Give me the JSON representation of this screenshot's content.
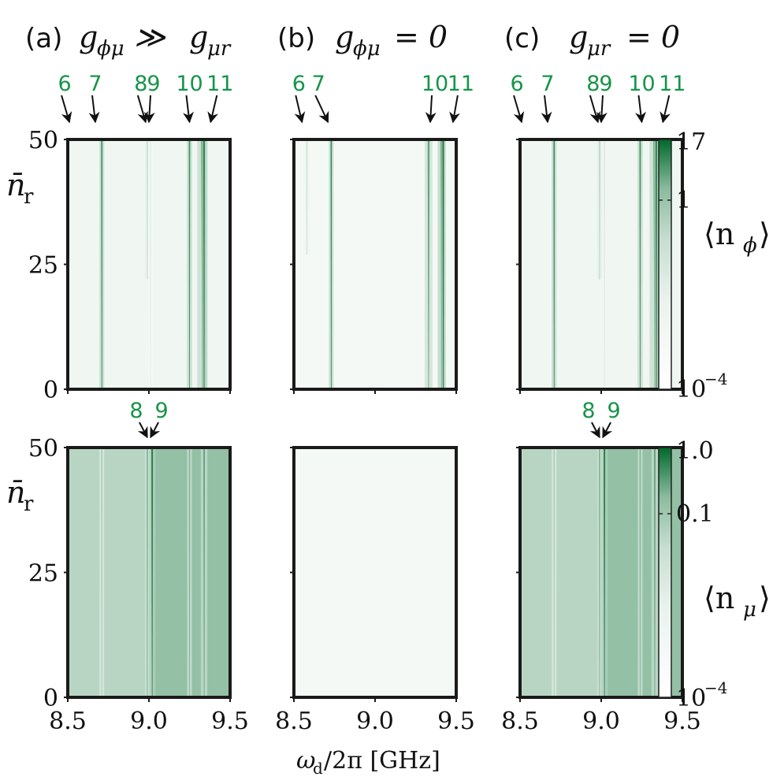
{
  "panels": [
    {
      "id": "a",
      "label": "(a)",
      "title_math": "g_{ϕμ} ≫ g_{μr}",
      "title_parts": {
        "g1": "g",
        "s1": "ϕμ",
        "rel": "≫",
        "g2": "g",
        "s2": "μr"
      }
    },
    {
      "id": "b",
      "label": "(b)",
      "title_math": "g_{ϕμ} = 0",
      "title_parts": {
        "g1": "g",
        "s1": "ϕμ",
        "rel": "= 0"
      }
    },
    {
      "id": "c",
      "label": "(c)",
      "title_math": "g_{μr} = 0",
      "title_parts": {
        "g1": "g",
        "s1": "μr",
        "rel": "= 0"
      }
    }
  ],
  "colorbars": {
    "top": {
      "label_main": "⟨n",
      "label_sub": "ϕ",
      "label_close": "⟩",
      "ticks": [
        "17",
        "1",
        "10",
        "−4"
      ],
      "tick_values": [
        17,
        1,
        0.0001
      ]
    },
    "bottom": {
      "label_main": "⟨n",
      "label_sub": "μ",
      "label_close": "⟩",
      "ticks": [
        "1.0",
        "0.1",
        "10",
        "−4"
      ],
      "tick_values": [
        1.0,
        0.1,
        0.0001
      ]
    }
  },
  "axes": {
    "ylabel_main": "n̄",
    "ylabel_sub": "r",
    "xlabel_main": "ω",
    "xlabel_sub": "d",
    "xlabel_rest": "/2π [GHz]"
  },
  "chart_data": [
    {
      "type": "heatmap",
      "panel": "a",
      "row": "top",
      "quantity": "⟨n_ϕ⟩",
      "xlim": [
        8.5,
        9.5
      ],
      "ylim": [
        0,
        50
      ],
      "xticks": [
        "8.5",
        "9.0",
        "9.5"
      ],
      "yticks": [
        "0",
        "25",
        "50"
      ],
      "color_scale": "log",
      "cmin": 0.0001,
      "cmax": 17,
      "color": "#00692a",
      "background_level": 0.06,
      "resonances": [
        {
          "x": 8.71,
          "strength": 0.8,
          "width": 0.003
        },
        {
          "x": 8.99,
          "strength": 0.25,
          "width": 0.002,
          "y_min": 22
        },
        {
          "x": 9.01,
          "strength": 0.12,
          "width": 0.002
        },
        {
          "x": 9.25,
          "strength": 0.75,
          "width": 0.004
        },
        {
          "x": 9.33,
          "strength": 0.7,
          "width": 0.008
        },
        {
          "x": 9.34,
          "strength": 0.95,
          "width": 0.003
        }
      ],
      "arrow_labels": [
        "6",
        "7",
        "8",
        "9",
        "10",
        "11"
      ],
      "arrow_targets": [
        8.51,
        8.67,
        8.98,
        9.0,
        9.25,
        9.38
      ]
    },
    {
      "type": "heatmap",
      "panel": "b",
      "row": "top",
      "quantity": "⟨n_ϕ⟩",
      "xlim": [
        8.5,
        9.5
      ],
      "ylim": [
        0,
        50
      ],
      "xticks": [
        "8.5",
        "9.0",
        "9.5"
      ],
      "yticks": [
        "0",
        "25",
        "50"
      ],
      "color_scale": "log",
      "cmin": 0.0001,
      "cmax": 17,
      "color": "#00692a",
      "background_level": 0.04,
      "resonances": [
        {
          "x": 8.58,
          "strength": 0.2,
          "width": 0.002,
          "y_min": 27
        },
        {
          "x": 8.73,
          "strength": 0.8,
          "width": 0.003
        },
        {
          "x": 9.33,
          "strength": 0.6,
          "width": 0.006
        },
        {
          "x": 9.41,
          "strength": 0.85,
          "width": 0.006
        },
        {
          "x": 9.42,
          "strength": 0.95,
          "width": 0.003
        }
      ],
      "arrow_labels": [
        "6",
        "7",
        "10",
        "11"
      ],
      "arrow_targets": [
        8.55,
        8.71,
        9.34,
        9.48
      ]
    },
    {
      "type": "heatmap",
      "panel": "c",
      "row": "top",
      "quantity": "⟨n_ϕ⟩",
      "xlim": [
        8.5,
        9.5
      ],
      "ylim": [
        0,
        50
      ],
      "xticks": [
        "8.5",
        "9.0",
        "9.5"
      ],
      "yticks": [
        "0",
        "25",
        "50"
      ],
      "color_scale": "log",
      "cmin": 0.0001,
      "cmax": 17,
      "color": "#00692a",
      "background_level": 0.06,
      "resonances": [
        {
          "x": 8.71,
          "strength": 0.8,
          "width": 0.003
        },
        {
          "x": 8.99,
          "strength": 0.3,
          "width": 0.002,
          "y_min": 22
        },
        {
          "x": 9.02,
          "strength": 0.15,
          "width": 0.002
        },
        {
          "x": 9.24,
          "strength": 0.75,
          "width": 0.004
        },
        {
          "x": 9.33,
          "strength": 0.7,
          "width": 0.008
        },
        {
          "x": 9.34,
          "strength": 0.95,
          "width": 0.003
        }
      ],
      "arrow_labels": [
        "6",
        "7",
        "8",
        "9",
        "10",
        "11"
      ],
      "arrow_targets": [
        8.51,
        8.67,
        8.98,
        9.0,
        9.25,
        9.38
      ]
    },
    {
      "type": "heatmap",
      "panel": "a",
      "row": "bottom",
      "quantity": "⟨n_μ⟩",
      "xlim": [
        8.5,
        9.5
      ],
      "ylim": [
        0,
        50
      ],
      "xticks": [
        "8.5",
        "9.0",
        "9.5"
      ],
      "yticks": [
        "0",
        "25",
        "50"
      ],
      "color_scale": "log",
      "cmin": 0.0001,
      "cmax": 1.0,
      "color": "#00692a",
      "background_level": 0.28,
      "band": {
        "x0": 9.02,
        "x1": 9.5,
        "level": 0.42
      },
      "resonances": [
        {
          "x": 8.71,
          "strength": 0.35,
          "width": 0.003
        },
        {
          "x": 8.99,
          "strength": 0.55,
          "width": 0.003
        },
        {
          "x": 9.02,
          "strength": 0.85,
          "width": 0.005
        },
        {
          "x": 9.25,
          "strength": 0.5,
          "width": 0.003
        },
        {
          "x": 9.34,
          "strength": 0.6,
          "width": 0.005
        }
      ],
      "arrow_labels": [
        "8",
        "9"
      ],
      "arrow_targets": [
        8.99,
        9.01
      ]
    },
    {
      "type": "heatmap",
      "panel": "b",
      "row": "bottom",
      "quantity": "⟨n_μ⟩",
      "xlim": [
        8.5,
        9.5
      ],
      "ylim": [
        0,
        50
      ],
      "xticks": [
        "8.5",
        "9.0",
        "9.5"
      ],
      "yticks": [
        "0",
        "25",
        "50"
      ],
      "color_scale": "log",
      "cmin": 0.0001,
      "cmax": 1.0,
      "color": "#00692a",
      "background_level": 0.04,
      "resonances": []
    },
    {
      "type": "heatmap",
      "panel": "c",
      "row": "bottom",
      "quantity": "⟨n_μ⟩",
      "xlim": [
        8.5,
        9.5
      ],
      "ylim": [
        0,
        50
      ],
      "xticks": [
        "8.5",
        "9.0",
        "9.5"
      ],
      "yticks": [
        "0",
        "25",
        "50"
      ],
      "color_scale": "log",
      "cmin": 0.0001,
      "cmax": 1.0,
      "color": "#00692a",
      "background_level": 0.28,
      "band": {
        "x0": 9.02,
        "x1": 9.5,
        "level": 0.42
      },
      "resonances": [
        {
          "x": 8.71,
          "strength": 0.35,
          "width": 0.003
        },
        {
          "x": 8.99,
          "strength": 0.55,
          "width": 0.003
        },
        {
          "x": 9.02,
          "strength": 0.85,
          "width": 0.005
        },
        {
          "x": 9.24,
          "strength": 0.5,
          "width": 0.003
        },
        {
          "x": 9.33,
          "strength": 0.6,
          "width": 0.005
        }
      ],
      "arrow_labels": [
        "8",
        "9"
      ],
      "arrow_targets": [
        8.99,
        9.01
      ]
    }
  ]
}
